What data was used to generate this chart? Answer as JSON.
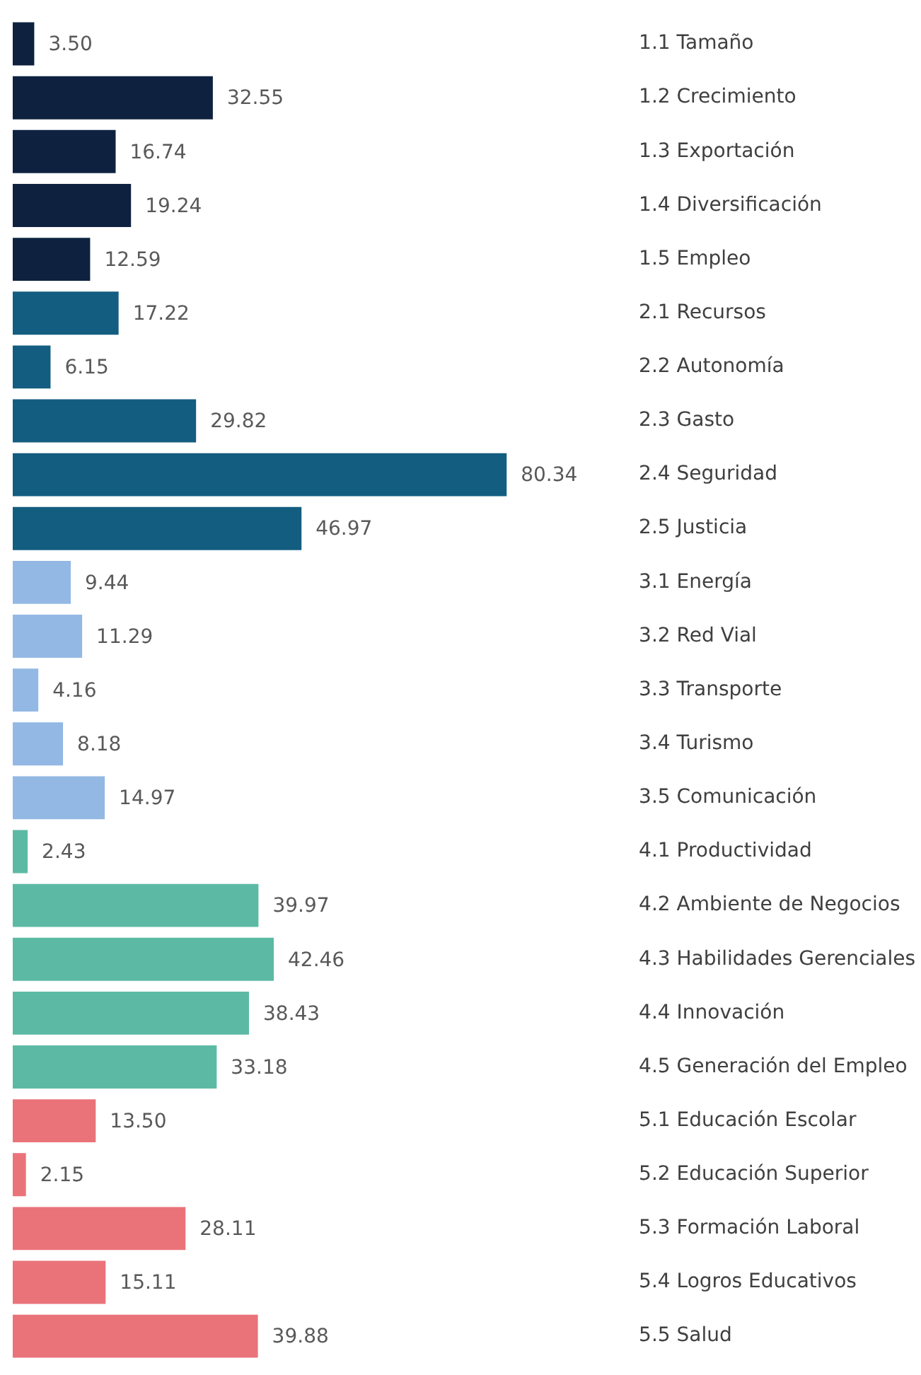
{
  "chart_data": {
    "type": "bar",
    "orientation": "horizontal",
    "value_labels": [
      "3.50",
      "32.55",
      "16.74",
      "19.24",
      "12.59",
      "17.22",
      "6.15",
      "29.82",
      "80.34",
      "46.97",
      "9.44",
      "11.29",
      "4.16",
      "8.18",
      "14.97",
      "2.43",
      "39.97",
      "42.46",
      "38.43",
      "33.18",
      "13.50",
      "2.15",
      "28.11",
      "15.11",
      "39.88"
    ],
    "categories": [
      "1.1 Tamaño",
      "1.2 Crecimiento",
      "1.3 Exportación",
      "1.4 Diversificación",
      "1.5 Empleo",
      "2.1 Recursos",
      "2.2 Autonomía",
      "2.3 Gasto",
      "2.4 Seguridad",
      "2.5 Justicia",
      "3.1 Energía",
      "3.2 Red Vial",
      "3.3 Transporte",
      "3.4 Turismo",
      "3.5 Comunicación",
      "4.1 Productividad",
      "4.2 Ambiente de Negocios",
      "4.3 Habilidades Gerenciales",
      "4.4 Innovación",
      "4.5 Generación del Empleo",
      "5.1 Educación Escolar",
      "5.2 Educación Superior",
      "5.3 Formación Laboral",
      "5.4 Logros Educativos",
      "5.5 Salud"
    ],
    "values": [
      3.5,
      32.55,
      16.74,
      19.24,
      12.59,
      17.22,
      6.15,
      29.82,
      80.34,
      46.97,
      9.44,
      11.29,
      4.16,
      8.18,
      14.97,
      2.43,
      39.97,
      42.46,
      38.43,
      33.18,
      13.5,
      2.15,
      28.11,
      15.11,
      39.88
    ],
    "colors": [
      "#0e2240",
      "#0e2240",
      "#0e2240",
      "#0e2240",
      "#0e2240",
      "#135d80",
      "#135d80",
      "#135d80",
      "#135d80",
      "#135d80",
      "#93b8e4",
      "#93b8e4",
      "#93b8e4",
      "#93b8e4",
      "#93b8e4",
      "#5cbaa4",
      "#5cbaa4",
      "#5cbaa4",
      "#5cbaa4",
      "#5cbaa4",
      "#ea737a",
      "#ea737a",
      "#ea737a",
      "#ea737a",
      "#ea737a"
    ]
  }
}
